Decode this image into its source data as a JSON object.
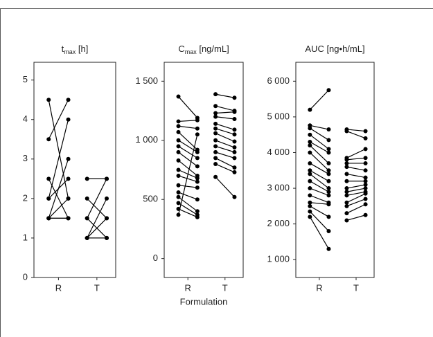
{
  "chart_data": [
    {
      "type": "paired",
      "title": [
        "t",
        "max",
        " [h]"
      ],
      "color": "#000000",
      "ylim": [
        0,
        5.45
      ],
      "yticks": [
        0,
        1,
        2,
        3,
        4,
        5
      ],
      "groups": [
        {
          "name": "R",
          "first": [
            4.5,
            3.5,
            2.5,
            2.0,
            2.0,
            1.5,
            1.5,
            1.5,
            1.5
          ],
          "second": [
            2.0,
            4.5,
            1.5,
            4.0,
            2.5,
            3.0,
            2.0,
            1.5,
            1.5
          ]
        },
        {
          "name": "T",
          "first": [
            2.5,
            2.0,
            1.5,
            1.5,
            1.0,
            1.0,
            1.0,
            1.0
          ],
          "second": [
            2.5,
            1.5,
            2.5,
            1.0,
            2.0,
            1.5,
            1.0,
            1.0
          ]
        }
      ]
    },
    {
      "type": "paired",
      "title": [
        "C",
        "max",
        " [ng/mL]"
      ],
      "xlabel": "Formulation",
      "color": "#000000",
      "ylim": [
        -160,
        1660
      ],
      "yticks": [
        0,
        500,
        {
          "value": 1000,
          "label": "1 000"
        },
        {
          "value": 1500,
          "label": "1 500"
        }
      ],
      "groups": [
        {
          "name": "R",
          "first": [
            1370,
            1160,
            1120,
            1070,
            1000,
            950,
            900,
            830,
            750,
            700,
            620,
            560,
            520,
            470,
            420,
            370
          ],
          "second": [
            1190,
            1170,
            1100,
            920,
            900,
            850,
            780,
            700,
            680,
            650,
            600,
            500,
            400,
            370,
            350,
            1050
          ]
        },
        {
          "name": "T",
          "first": [
            1390,
            1290,
            1230,
            1200,
            1140,
            1100,
            1060,
            1000,
            950,
            900,
            850,
            800,
            690
          ],
          "second": [
            1360,
            1250,
            1240,
            1180,
            1090,
            1050,
            990,
            940,
            900,
            850,
            770,
            730,
            520
          ]
        }
      ]
    },
    {
      "type": "paired",
      "title": [
        "AUC [ng•h/mL]"
      ],
      "color": "#000000",
      "ylim": [
        500,
        6530
      ],
      "yticks": [
        {
          "value": 1000,
          "label": "1 000"
        },
        {
          "value": 2000,
          "label": "2 000"
        },
        {
          "value": 3000,
          "label": "3 000"
        },
        {
          "value": 4000,
          "label": "4 000"
        },
        {
          "value": 5000,
          "label": "5 000"
        },
        {
          "value": 6000,
          "label": "6 000"
        }
      ],
      "groups": [
        {
          "name": "R",
          "first": [
            5200,
            4760,
            4680,
            4500,
            4300,
            4200,
            4000,
            3700,
            3500,
            3400,
            3200,
            3000,
            2800,
            2600,
            2500,
            2350,
            2200
          ],
          "second": [
            5750,
            4650,
            4350,
            4100,
            4000,
            3700,
            3500,
            3400,
            3200,
            3000,
            2900,
            2800,
            2600,
            2550,
            2200,
            1800,
            1300
          ]
        },
        {
          "name": "T",
          "first": [
            4650,
            4600,
            3850,
            3800,
            3700,
            3600,
            3400,
            3200,
            3000,
            2900,
            2800,
            2600,
            2500,
            2300,
            2100
          ],
          "second": [
            4600,
            4400,
            4100,
            3850,
            3700,
            3500,
            3300,
            3200,
            3100,
            3000,
            2900,
            2850,
            2700,
            2550,
            2250
          ]
        }
      ]
    }
  ]
}
